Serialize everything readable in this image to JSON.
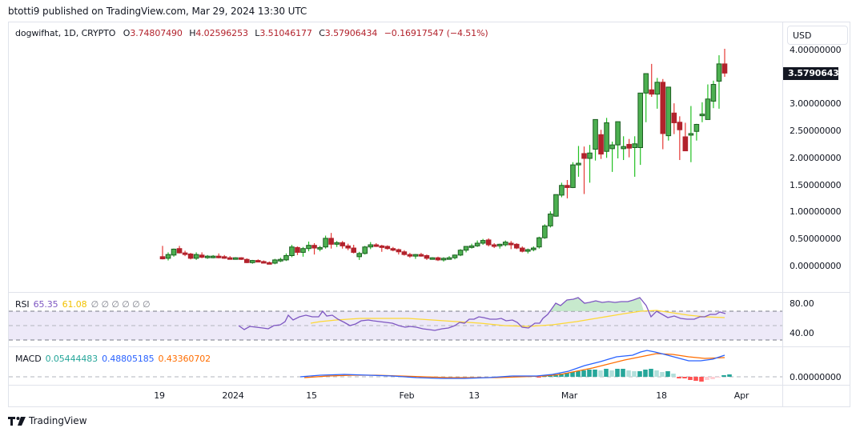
{
  "header": {
    "published": "btotti9 published on TradingView.com, Mar 29, 2024 13:30 UTC"
  },
  "legend": {
    "symbol": "dogwifhat, 1D, CRYPTO",
    "open_label": "O",
    "open": "3.74807490",
    "high_label": "H",
    "high": "4.02596253",
    "low_label": "L",
    "low": "3.51046177",
    "close_label": "C",
    "close": "3.57906434",
    "change": "−0.16917547 (−4.51%)"
  },
  "currency_button": "USD",
  "price_axis": {
    "labels": [
      "4.00000000",
      "3.00000000",
      "2.50000000",
      "2.00000000",
      "1.50000000",
      "1.00000000",
      "0.50000000",
      "0.00000000"
    ],
    "current_price": "3.57906434"
  },
  "rsi": {
    "label": "RSI",
    "value": "65.35",
    "ma": "61.08",
    "extra": "∅ ∅ ∅ ∅ ∅ ∅",
    "axis": [
      "80.00",
      "40.00"
    ],
    "colors": {
      "rsi": "#7e57c2",
      "ma": "#fdd835"
    }
  },
  "macd": {
    "label": "MACD",
    "histogram": "0.05444483",
    "macd": "0.48805185",
    "signal": "0.43360702",
    "axis": [
      "0.00000000"
    ],
    "colors": {
      "histogram": "#26a69a",
      "macd": "#2962ff",
      "signal": "#ff6d00"
    }
  },
  "time_axis": [
    "19",
    "2024",
    "15",
    "Feb",
    "13",
    "Mar",
    "18",
    "Apr"
  ],
  "footer": {
    "brand": "TradingView"
  },
  "colors": {
    "up": "#4caf50",
    "up_border": "#1b5e20",
    "down": "#b2222c",
    "wick_up": "#22c022",
    "wick_down": "#e53935"
  },
  "chart_data": {
    "type": "candlestick",
    "title": "dogwifhat, 1D, CRYPTO",
    "ylabel": "USD",
    "ylim": [
      0,
      4.2
    ],
    "x_ticks": [
      "19",
      "2024",
      "15",
      "Feb",
      "13",
      "Mar",
      "18",
      "Apr"
    ],
    "grid": false,
    "start_date": "2023-12-20",
    "end_date": "2024-03-29",
    "ohlc": [
      [
        0.18,
        0.38,
        0.13,
        0.14
      ],
      [
        0.15,
        0.26,
        0.11,
        0.22
      ],
      [
        0.21,
        0.33,
        0.18,
        0.32
      ],
      [
        0.33,
        0.38,
        0.24,
        0.25
      ],
      [
        0.25,
        0.29,
        0.19,
        0.23
      ],
      [
        0.23,
        0.25,
        0.13,
        0.15
      ],
      [
        0.15,
        0.26,
        0.12,
        0.22
      ],
      [
        0.21,
        0.26,
        0.15,
        0.17
      ],
      [
        0.17,
        0.21,
        0.14,
        0.19
      ],
      [
        0.18,
        0.21,
        0.15,
        0.19
      ],
      [
        0.19,
        0.24,
        0.15,
        0.18
      ],
      [
        0.18,
        0.21,
        0.14,
        0.16
      ],
      [
        0.16,
        0.19,
        0.14,
        0.15
      ],
      [
        0.15,
        0.17,
        0.13,
        0.16
      ],
      [
        0.16,
        0.17,
        0.12,
        0.13
      ],
      [
        0.13,
        0.15,
        0.06,
        0.07
      ],
      [
        0.07,
        0.12,
        0.05,
        0.11
      ],
      [
        0.11,
        0.13,
        0.08,
        0.09
      ],
      [
        0.09,
        0.11,
        0.06,
        0.07
      ],
      [
        0.07,
        0.09,
        0.05,
        0.06
      ],
      [
        0.06,
        0.14,
        0.04,
        0.12
      ],
      [
        0.12,
        0.16,
        0.08,
        0.13
      ],
      [
        0.12,
        0.24,
        0.1,
        0.2
      ],
      [
        0.2,
        0.4,
        0.17,
        0.36
      ],
      [
        0.35,
        0.37,
        0.21,
        0.26
      ],
      [
        0.26,
        0.36,
        0.18,
        0.33
      ],
      [
        0.33,
        0.46,
        0.28,
        0.39
      ],
      [
        0.39,
        0.43,
        0.22,
        0.34
      ],
      [
        0.34,
        0.38,
        0.28,
        0.35
      ],
      [
        0.36,
        0.57,
        0.33,
        0.52
      ],
      [
        0.52,
        0.62,
        0.33,
        0.41
      ],
      [
        0.41,
        0.47,
        0.36,
        0.44
      ],
      [
        0.44,
        0.47,
        0.33,
        0.38
      ],
      [
        0.38,
        0.42,
        0.3,
        0.34
      ],
      [
        0.34,
        0.4,
        0.24,
        0.26
      ],
      [
        0.18,
        0.27,
        0.12,
        0.24
      ],
      [
        0.24,
        0.38,
        0.22,
        0.36
      ],
      [
        0.36,
        0.45,
        0.32,
        0.4
      ],
      [
        0.4,
        0.43,
        0.36,
        0.37
      ],
      [
        0.38,
        0.4,
        0.27,
        0.37
      ],
      [
        0.37,
        0.39,
        0.31,
        0.33
      ],
      [
        0.33,
        0.36,
        0.28,
        0.31
      ],
      [
        0.31,
        0.33,
        0.22,
        0.27
      ],
      [
        0.27,
        0.3,
        0.2,
        0.22
      ],
      [
        0.22,
        0.25,
        0.16,
        0.19
      ],
      [
        0.19,
        0.23,
        0.14,
        0.22
      ],
      [
        0.22,
        0.25,
        0.18,
        0.2
      ],
      [
        0.2,
        0.22,
        0.12,
        0.15
      ],
      [
        0.15,
        0.17,
        0.13,
        0.16
      ],
      [
        0.16,
        0.18,
        0.1,
        0.12
      ],
      [
        0.12,
        0.17,
        0.09,
        0.15
      ],
      [
        0.15,
        0.19,
        0.13,
        0.16
      ],
      [
        0.16,
        0.22,
        0.13,
        0.21
      ],
      [
        0.21,
        0.32,
        0.19,
        0.3
      ],
      [
        0.3,
        0.36,
        0.26,
        0.37
      ],
      [
        0.37,
        0.42,
        0.33,
        0.38
      ],
      [
        0.38,
        0.48,
        0.36,
        0.43
      ],
      [
        0.43,
        0.51,
        0.4,
        0.48
      ],
      [
        0.49,
        0.52,
        0.37,
        0.4
      ],
      [
        0.4,
        0.43,
        0.34,
        0.38
      ],
      [
        0.38,
        0.42,
        0.33,
        0.41
      ],
      [
        0.4,
        0.48,
        0.37,
        0.45
      ],
      [
        0.43,
        0.47,
        0.32,
        0.4
      ],
      [
        0.41,
        0.43,
        0.32,
        0.34
      ],
      [
        0.34,
        0.37,
        0.26,
        0.28
      ],
      [
        0.29,
        0.33,
        0.24,
        0.31
      ],
      [
        0.31,
        0.37,
        0.28,
        0.34
      ],
      [
        0.36,
        0.55,
        0.33,
        0.53
      ],
      [
        0.53,
        0.78,
        0.51,
        0.75
      ],
      [
        0.75,
        1.02,
        0.72,
        0.97
      ],
      [
        0.93,
        1.32,
        0.92,
        1.33
      ],
      [
        1.32,
        1.55,
        1.28,
        1.5
      ],
      [
        1.5,
        1.6,
        1.26,
        1.46
      ],
      [
        1.46,
        1.93,
        1.45,
        1.88
      ],
      [
        1.88,
        2.23,
        1.66,
        1.91
      ],
      [
        2.09,
        2.22,
        1.34,
        2.0
      ],
      [
        2.0,
        2.25,
        1.55,
        2.1
      ],
      [
        2.17,
        2.62,
        1.96,
        2.72
      ],
      [
        2.44,
        2.53,
        1.99,
        2.08
      ],
      [
        2.13,
        2.75,
        2.01,
        2.66
      ],
      [
        2.18,
        2.31,
        1.75,
        2.25
      ],
      [
        2.25,
        2.66,
        2.0,
        2.68
      ],
      [
        2.18,
        2.41,
        1.97,
        2.22
      ],
      [
        2.26,
        2.36,
        2.02,
        2.19
      ],
      [
        2.2,
        2.41,
        1.66,
        2.27
      ],
      [
        2.2,
        2.63,
        1.88,
        3.21
      ],
      [
        3.21,
        3.54,
        2.67,
        3.57
      ],
      [
        3.27,
        3.75,
        3.14,
        3.19
      ],
      [
        3.19,
        3.49,
        2.92,
        3.41
      ],
      [
        3.41,
        3.47,
        2.17,
        2.46
      ],
      [
        2.42,
        3.14,
        2.33,
        3.32
      ],
      [
        2.84,
        3.02,
        2.45,
        2.66
      ],
      [
        2.67,
        2.78,
        1.97,
        2.53
      ],
      [
        2.4,
        2.66,
        2.28,
        2.14
      ],
      [
        2.46,
        2.97,
        1.93,
        2.46
      ],
      [
        2.5,
        2.64,
        2.33,
        2.63
      ],
      [
        2.81,
        3.04,
        2.67,
        2.82
      ],
      [
        2.72,
        3.37,
        2.87,
        3.1
      ],
      [
        3.06,
        3.44,
        2.93,
        3.37
      ],
      [
        3.43,
        3.91,
        2.92,
        3.75
      ],
      [
        3.75,
        4.03,
        3.51,
        3.58
      ]
    ]
  }
}
